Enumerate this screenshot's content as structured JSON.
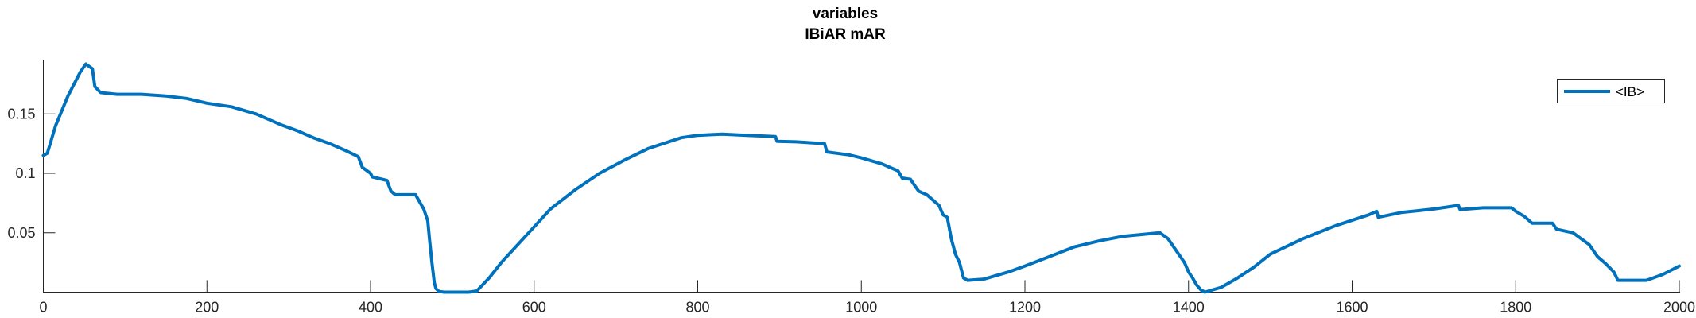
{
  "chart_data": {
    "type": "line",
    "title": [
      "variables",
      "IBiAR mAR"
    ],
    "xlabel": "",
    "ylabel": "",
    "xlim": [
      0,
      2000
    ],
    "ylim": [
      0,
      0.195
    ],
    "x_ticks": [
      0,
      200,
      400,
      600,
      800,
      1000,
      1200,
      1400,
      1600,
      1800,
      2000
    ],
    "x_tick_labels": [
      "0",
      "200",
      "400",
      "600",
      "800",
      "1000",
      "1200",
      "1400",
      "1600",
      "1800",
      "2000"
    ],
    "y_ticks": [
      0.05,
      0.1,
      0.15
    ],
    "y_tick_labels": [
      "0.05",
      "0.1",
      "0.15"
    ],
    "grid": false,
    "legend": {
      "location": "top-right",
      "entries": [
        "<IB>"
      ]
    },
    "series": [
      {
        "name": "<IB>",
        "color": "#0072BD",
        "x": [
          0,
          5,
          15,
          30,
          45,
          52,
          60,
          63,
          70,
          90,
          120,
          150,
          175,
          200,
          230,
          260,
          290,
          310,
          330,
          350,
          370,
          385,
          390,
          400,
          402,
          420,
          425,
          430,
          440,
          455,
          460,
          465,
          470,
          472,
          475,
          478,
          480,
          483,
          485,
          490,
          500,
          520,
          530,
          545,
          560,
          580,
          600,
          620,
          650,
          680,
          710,
          740,
          780,
          800,
          830,
          860,
          895,
          897,
          920,
          955,
          958,
          985,
          1000,
          1010,
          1025,
          1045,
          1050,
          1060,
          1065,
          1070,
          1080,
          1095,
          1100,
          1105,
          1110,
          1115,
          1120,
          1125,
          1130,
          1150,
          1160,
          1180,
          1200,
          1230,
          1260,
          1290,
          1320,
          1350,
          1365,
          1375,
          1385,
          1395,
          1400,
          1405,
          1410,
          1415,
          1420,
          1440,
          1460,
          1480,
          1500,
          1540,
          1580,
          1620,
          1630,
          1632,
          1660,
          1700,
          1730,
          1732,
          1760,
          1795,
          1800,
          1810,
          1820,
          1845,
          1850,
          1870,
          1880,
          1890,
          1900,
          1910,
          1920,
          1925,
          1940,
          1960,
          1980,
          2000
        ],
        "y": [
          0.115,
          0.117,
          0.14,
          0.165,
          0.185,
          0.192,
          0.188,
          0.173,
          0.168,
          0.1665,
          0.1665,
          0.165,
          0.163,
          0.159,
          0.156,
          0.15,
          0.141,
          0.136,
          0.13,
          0.125,
          0.119,
          0.114,
          0.105,
          0.1,
          0.097,
          0.094,
          0.085,
          0.082,
          0.082,
          0.082,
          0.076,
          0.07,
          0.06,
          0.045,
          0.025,
          0.008,
          0.003,
          0.001,
          0.0005,
          0.0,
          0.0,
          0.0,
          0.001,
          0.012,
          0.025,
          0.04,
          0.055,
          0.07,
          0.086,
          0.1,
          0.111,
          0.121,
          0.13,
          0.132,
          0.133,
          0.132,
          0.131,
          0.127,
          0.1265,
          0.125,
          0.118,
          0.1155,
          0.113,
          0.111,
          0.108,
          0.102,
          0.096,
          0.095,
          0.09,
          0.085,
          0.082,
          0.073,
          0.065,
          0.063,
          0.045,
          0.032,
          0.025,
          0.012,
          0.01,
          0.011,
          0.013,
          0.017,
          0.022,
          0.03,
          0.038,
          0.043,
          0.047,
          0.049,
          0.05,
          0.045,
          0.035,
          0.025,
          0.017,
          0.012,
          0.006,
          0.002,
          0.0,
          0.004,
          0.012,
          0.021,
          0.032,
          0.045,
          0.056,
          0.065,
          0.068,
          0.063,
          0.067,
          0.07,
          0.073,
          0.0695,
          0.071,
          0.071,
          0.068,
          0.064,
          0.058,
          0.058,
          0.053,
          0.05,
          0.045,
          0.04,
          0.03,
          0.024,
          0.017,
          0.01,
          0.01,
          0.01,
          0.015,
          0.022
        ]
      }
    ]
  }
}
